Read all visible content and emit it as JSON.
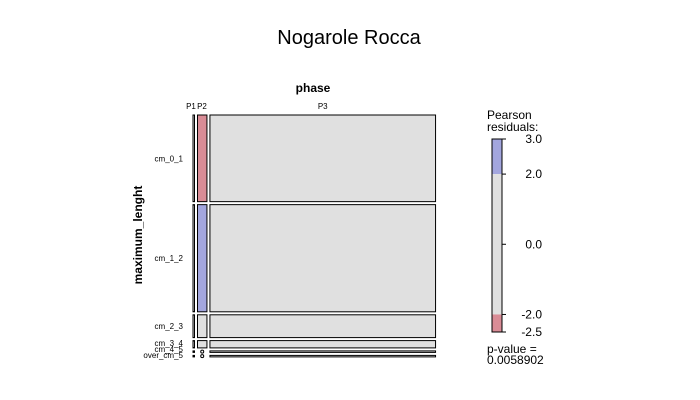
{
  "chart_data": {
    "type": "mosaic",
    "title": "Nogarole Rocca",
    "xlabel": "phase",
    "ylabel": "maximum_lenght",
    "columns": [
      "P1",
      "P2",
      "P3"
    ],
    "column_widths": [
      0.004,
      0.04,
      0.956
    ],
    "rows": [
      "cm_0_1",
      "cm_1_2",
      "cm_2_3",
      "cm_3_4",
      "cm_4_5",
      "over_cm_5"
    ],
    "row_heights": [
      0.38,
      0.47,
      0.1,
      0.032,
      0.006,
      0.006
    ],
    "cells": [
      {
        "row": "cm_0_1",
        "col": "P1",
        "shade": "none"
      },
      {
        "row": "cm_0_1",
        "col": "P2",
        "shade": "negative"
      },
      {
        "row": "cm_0_1",
        "col": "P3",
        "shade": "none"
      },
      {
        "row": "cm_1_2",
        "col": "P1",
        "shade": "none"
      },
      {
        "row": "cm_1_2",
        "col": "P2",
        "shade": "positive"
      },
      {
        "row": "cm_1_2",
        "col": "P3",
        "shade": "none"
      },
      {
        "row": "cm_2_3",
        "col": "P1",
        "shade": "none"
      },
      {
        "row": "cm_2_3",
        "col": "P2",
        "shade": "none"
      },
      {
        "row": "cm_2_3",
        "col": "P3",
        "shade": "none"
      },
      {
        "row": "cm_3_4",
        "col": "P1",
        "shade": "none"
      },
      {
        "row": "cm_3_4",
        "col": "P2",
        "shade": "none"
      },
      {
        "row": "cm_3_4",
        "col": "P3",
        "shade": "none"
      },
      {
        "row": "cm_4_5",
        "col": "P1",
        "shade": "none"
      },
      {
        "row": "cm_4_5",
        "col": "P2",
        "shade": "empty"
      },
      {
        "row": "cm_4_5",
        "col": "P3",
        "shade": "none"
      },
      {
        "row": "over_cm_5",
        "col": "P1",
        "shade": "none"
      },
      {
        "row": "over_cm_5",
        "col": "P2",
        "shade": "empty"
      },
      {
        "row": "over_cm_5",
        "col": "P3",
        "shade": "none"
      }
    ],
    "legend": {
      "title_line1": "Pearson",
      "title_line2": "residuals:",
      "range": [
        -2.5,
        3.0
      ],
      "ticks": [
        "3.0",
        "2.0",
        "0.0",
        "-2.0",
        "-2.5"
      ],
      "tick_values": [
        3.0,
        2.0,
        0.0,
        -2.0,
        -2.5
      ],
      "pvalue_label": "p-value =",
      "pvalue": "0.0058902"
    },
    "colors": {
      "positive": "#a3a6de",
      "negative": "#d98c96",
      "neutral": "#e0e0e0",
      "border": "#000000"
    }
  }
}
